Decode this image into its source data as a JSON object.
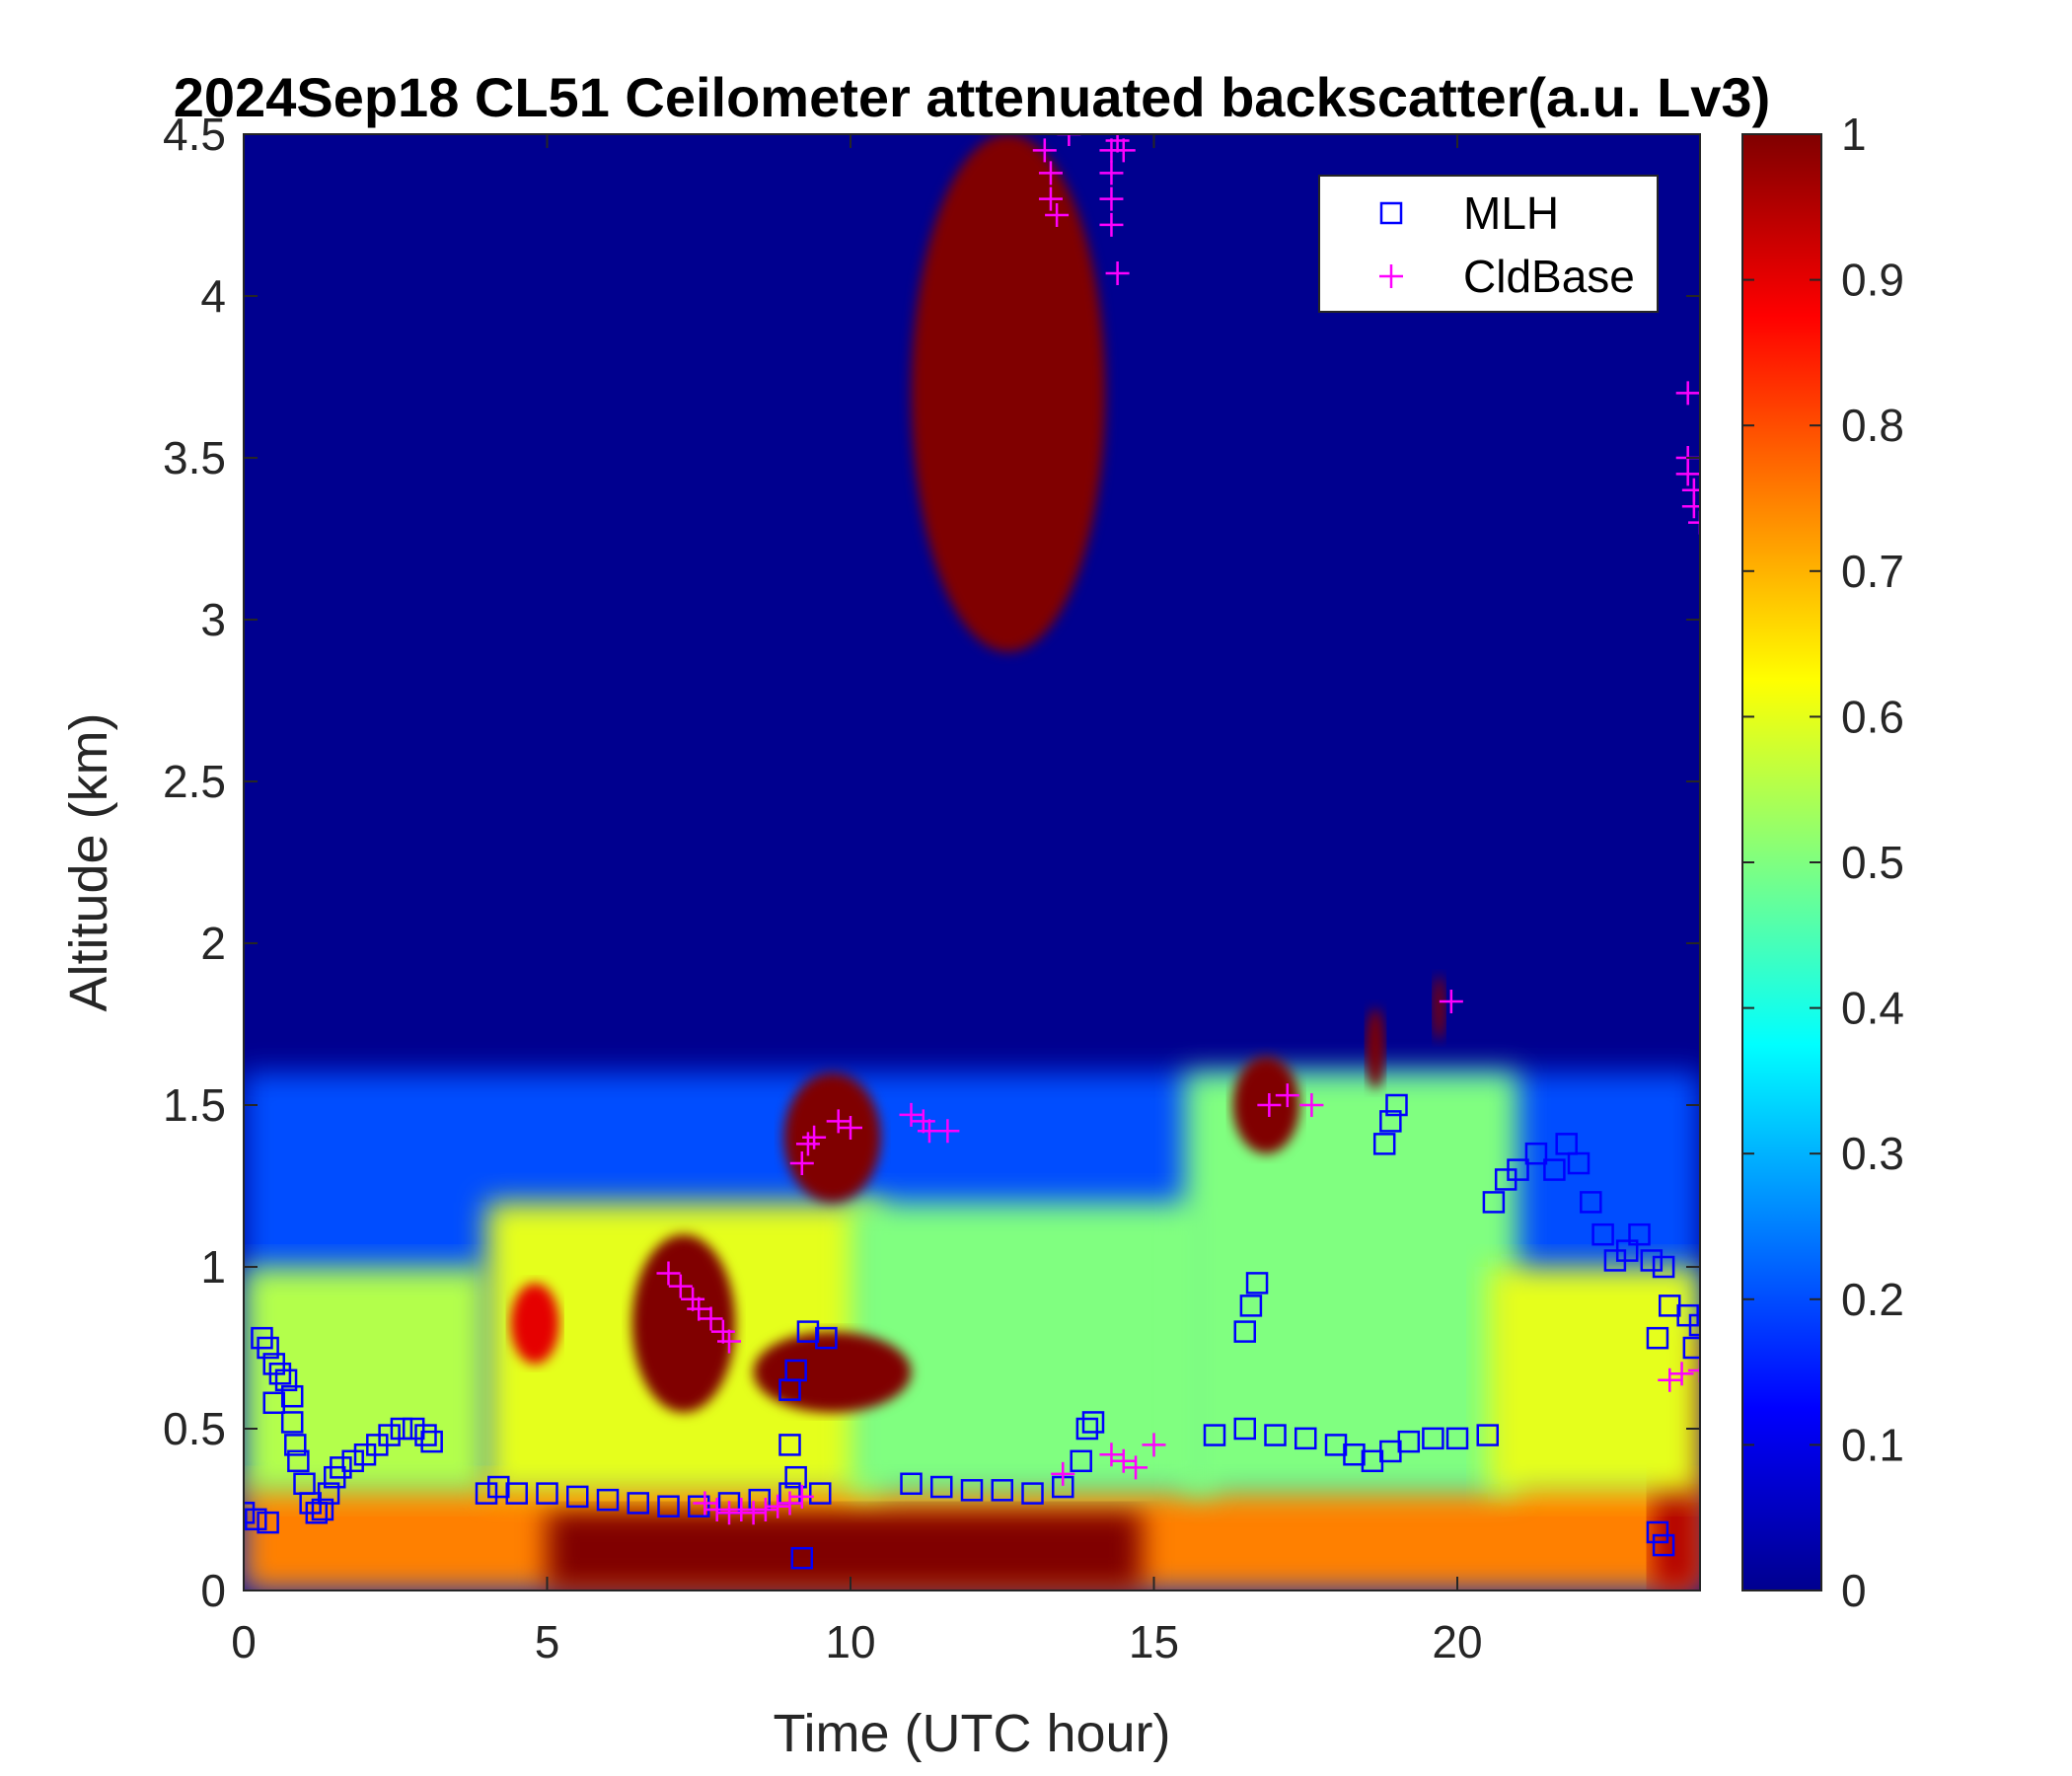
{
  "chart_data": {
    "type": "heatmap",
    "title": "2024Sep18 CL51 Ceilometer attenuated backscatter(a.u. Lv3)",
    "xlabel": "Time (UTC hour)",
    "ylabel": "Altitude (km)",
    "xlim": [
      0,
      24
    ],
    "ylim": [
      0,
      4.5
    ],
    "xticks": [
      "0",
      "5",
      "10",
      "15",
      "20"
    ],
    "xtick_values": [
      0,
      5,
      10,
      15,
      20
    ],
    "yticks": [
      "0",
      "0.5",
      "1",
      "1.5",
      "2",
      "2.5",
      "3",
      "3.5",
      "4",
      "4.5"
    ],
    "ytick_values": [
      0,
      0.5,
      1,
      1.5,
      2,
      2.5,
      3,
      3.5,
      4,
      4.5
    ],
    "colorbar": {
      "min": 0,
      "max": 1,
      "ticks": [
        "0",
        "0.1",
        "0.2",
        "0.3",
        "0.4",
        "0.5",
        "0.6",
        "0.7",
        "0.8",
        "0.9",
        "1"
      ],
      "tick_values": [
        0,
        0.1,
        0.2,
        0.3,
        0.4,
        0.5,
        0.6,
        0.7,
        0.8,
        0.9,
        1
      ],
      "colormap": "jet"
    },
    "legend": {
      "placement": "top-right",
      "entries": [
        {
          "name": "MLH",
          "marker": "square",
          "color": "#0000ff"
        },
        {
          "name": "CldBase",
          "marker": "plus",
          "color": "#ff00ff"
        }
      ]
    },
    "backscatter_features": [
      {
        "kind": "surface_layer",
        "t_start": 0,
        "t_end": 24,
        "top_km": 0.35,
        "value": 0.75
      },
      {
        "kind": "surface_layer",
        "t_start": 5,
        "t_end": 14.8,
        "top_km": 0.25,
        "value": 1.0
      },
      {
        "kind": "surface_layer",
        "t_start": 23.2,
        "t_end": 24,
        "top_km": 0.8,
        "value": 0.95
      },
      {
        "kind": "aerosol_layer",
        "t_start": 0,
        "t_end": 4,
        "bottom_km": 0.3,
        "top_km": 1.0,
        "value": 0.55
      },
      {
        "kind": "aerosol_layer",
        "t_start": 4,
        "t_end": 10.5,
        "bottom_km": 0.3,
        "top_km": 1.2,
        "value": 0.6
      },
      {
        "kind": "aerosol_layer",
        "t_start": 10,
        "t_end": 16,
        "bottom_km": 0.3,
        "top_km": 1.2,
        "value": 0.5
      },
      {
        "kind": "aerosol_layer",
        "t_start": 15.5,
        "t_end": 21,
        "bottom_km": 0.3,
        "top_km": 1.6,
        "value": 0.5
      },
      {
        "kind": "aerosol_layer",
        "t_start": 20.5,
        "t_end": 24,
        "bottom_km": 0.3,
        "top_km": 1.0,
        "value": 0.6
      },
      {
        "kind": "cloud",
        "t_start": 6.4,
        "t_end": 8.1,
        "bottom_km": 0.55,
        "top_km": 1.1,
        "value": 1.0
      },
      {
        "kind": "cloud",
        "t_start": 8.4,
        "t_end": 11,
        "bottom_km": 0.55,
        "top_km": 0.8,
        "value": 1.0
      },
      {
        "kind": "cloud",
        "t_start": 4.4,
        "t_end": 5.2,
        "bottom_km": 0.7,
        "top_km": 0.95,
        "value": 0.9
      },
      {
        "kind": "cloud",
        "t_start": 8.9,
        "t_end": 10.5,
        "bottom_km": 1.2,
        "top_km": 1.6,
        "value": 1.0
      },
      {
        "kind": "cloud",
        "t_start": 16.3,
        "t_end": 17.4,
        "bottom_km": 1.35,
        "top_km": 1.65,
        "value": 1.0
      },
      {
        "kind": "cloud",
        "t_start": 18.5,
        "t_end": 18.8,
        "bottom_km": 1.55,
        "top_km": 1.8,
        "value": 1.0
      },
      {
        "kind": "cloud",
        "t_start": 19.6,
        "t_end": 19.8,
        "bottom_km": 1.7,
        "top_km": 1.9,
        "value": 1.0
      },
      {
        "kind": "cloud",
        "t_start": 11,
        "t_end": 14.2,
        "bottom_km": 2.9,
        "top_km": 4.5,
        "value": 1.0
      }
    ],
    "series": [
      {
        "name": "MLH",
        "marker": "square",
        "points": [
          [
            0,
            0.24
          ],
          [
            0.2,
            0.22
          ],
          [
            0.4,
            0.21
          ],
          [
            0.3,
            0.78
          ],
          [
            0.4,
            0.75
          ],
          [
            0.5,
            0.7
          ],
          [
            0.6,
            0.67
          ],
          [
            0.7,
            0.65
          ],
          [
            0.8,
            0.6
          ],
          [
            0.5,
            0.58
          ],
          [
            0.8,
            0.52
          ],
          [
            0.85,
            0.45
          ],
          [
            0.9,
            0.4
          ],
          [
            1.0,
            0.33
          ],
          [
            1.1,
            0.27
          ],
          [
            1.2,
            0.24
          ],
          [
            1.3,
            0.25
          ],
          [
            1.4,
            0.3
          ],
          [
            1.5,
            0.35
          ],
          [
            1.6,
            0.38
          ],
          [
            1.8,
            0.4
          ],
          [
            2.0,
            0.42
          ],
          [
            2.2,
            0.45
          ],
          [
            2.4,
            0.48
          ],
          [
            2.6,
            0.5
          ],
          [
            2.8,
            0.5
          ],
          [
            3.0,
            0.48
          ],
          [
            3.1,
            0.46
          ],
          [
            4.0,
            0.3
          ],
          [
            4.2,
            0.32
          ],
          [
            4.5,
            0.3
          ],
          [
            5.0,
            0.3
          ],
          [
            5.5,
            0.29
          ],
          [
            6.0,
            0.28
          ],
          [
            6.5,
            0.27
          ],
          [
            7.0,
            0.26
          ],
          [
            7.5,
            0.26
          ],
          [
            8.0,
            0.27
          ],
          [
            8.5,
            0.28
          ],
          [
            9.0,
            0.3
          ],
          [
            9.5,
            0.3
          ],
          [
            9.0,
            0.62
          ],
          [
            9.1,
            0.68
          ],
          [
            9.3,
            0.8
          ],
          [
            9.6,
            0.78
          ],
          [
            9.0,
            0.45
          ],
          [
            9.1,
            0.35
          ],
          [
            9.2,
            0.1
          ],
          [
            11.0,
            0.33
          ],
          [
            11.5,
            0.32
          ],
          [
            12.0,
            0.31
          ],
          [
            12.5,
            0.31
          ],
          [
            13.0,
            0.3
          ],
          [
            13.5,
            0.32
          ],
          [
            13.8,
            0.4
          ],
          [
            13.9,
            0.5
          ],
          [
            14.0,
            0.52
          ],
          [
            16.0,
            0.48
          ],
          [
            16.5,
            0.5
          ],
          [
            17.0,
            0.48
          ],
          [
            17.5,
            0.47
          ],
          [
            18.0,
            0.45
          ],
          [
            18.3,
            0.42
          ],
          [
            18.6,
            0.4
          ],
          [
            18.9,
            0.43
          ],
          [
            19.2,
            0.46
          ],
          [
            19.6,
            0.47
          ],
          [
            20.0,
            0.47
          ],
          [
            20.5,
            0.48
          ],
          [
            16.5,
            0.8
          ],
          [
            16.6,
            0.88
          ],
          [
            16.7,
            0.95
          ],
          [
            18.8,
            1.38
          ],
          [
            18.9,
            1.45
          ],
          [
            19.0,
            1.5
          ],
          [
            20.6,
            1.2
          ],
          [
            20.8,
            1.27
          ],
          [
            21.0,
            1.3
          ],
          [
            21.3,
            1.35
          ],
          [
            21.6,
            1.3
          ],
          [
            21.8,
            1.38
          ],
          [
            22.0,
            1.32
          ],
          [
            22.2,
            1.2
          ],
          [
            22.4,
            1.1
          ],
          [
            22.6,
            1.02
          ],
          [
            22.8,
            1.05
          ],
          [
            23.0,
            1.1
          ],
          [
            23.2,
            1.02
          ],
          [
            23.4,
            1.0
          ],
          [
            23.3,
            0.78
          ],
          [
            23.5,
            0.88
          ],
          [
            23.8,
            0.85
          ],
          [
            24.0,
            0.82
          ],
          [
            23.9,
            0.75
          ],
          [
            23.3,
            0.18
          ],
          [
            23.4,
            0.14
          ]
        ]
      },
      {
        "name": "CldBase",
        "marker": "plus",
        "points": [
          [
            13.2,
            4.45
          ],
          [
            13.3,
            4.38
          ],
          [
            13.3,
            4.3
          ],
          [
            13.4,
            4.25
          ],
          [
            13.6,
            4.5
          ],
          [
            14.3,
            4.45
          ],
          [
            14.3,
            4.38
          ],
          [
            14.3,
            4.3
          ],
          [
            14.3,
            4.22
          ],
          [
            14.4,
            4.48
          ],
          [
            14.5,
            4.45
          ],
          [
            14.4,
            4.07
          ],
          [
            7.0,
            0.98
          ],
          [
            7.2,
            0.94
          ],
          [
            7.4,
            0.9
          ],
          [
            7.5,
            0.87
          ],
          [
            7.7,
            0.84
          ],
          [
            7.9,
            0.8
          ],
          [
            8.0,
            0.77
          ],
          [
            7.6,
            0.27
          ],
          [
            7.8,
            0.25
          ],
          [
            8.0,
            0.24
          ],
          [
            8.2,
            0.25
          ],
          [
            8.4,
            0.24
          ],
          [
            8.6,
            0.25
          ],
          [
            8.8,
            0.26
          ],
          [
            9.0,
            0.27
          ],
          [
            9.2,
            0.29
          ],
          [
            9.2,
            1.32
          ],
          [
            9.3,
            1.38
          ],
          [
            9.4,
            1.4
          ],
          [
            9.8,
            1.45
          ],
          [
            10.0,
            1.43
          ],
          [
            11.0,
            1.47
          ],
          [
            11.2,
            1.45
          ],
          [
            11.3,
            1.42
          ],
          [
            11.6,
            1.42
          ],
          [
            13.5,
            0.36
          ],
          [
            14.3,
            0.42
          ],
          [
            14.5,
            0.4
          ],
          [
            14.7,
            0.38
          ],
          [
            15.0,
            0.45
          ],
          [
            16.9,
            1.5
          ],
          [
            17.2,
            1.53
          ],
          [
            17.6,
            1.5
          ],
          [
            19.9,
            1.82
          ],
          [
            23.8,
            3.7
          ],
          [
            23.8,
            3.5
          ],
          [
            23.8,
            3.45
          ],
          [
            23.9,
            3.4
          ],
          [
            23.9,
            3.35
          ],
          [
            24.0,
            3.3
          ],
          [
            23.5,
            0.65
          ],
          [
            23.7,
            0.67
          ],
          [
            24.0,
            0.68
          ]
        ]
      }
    ]
  }
}
